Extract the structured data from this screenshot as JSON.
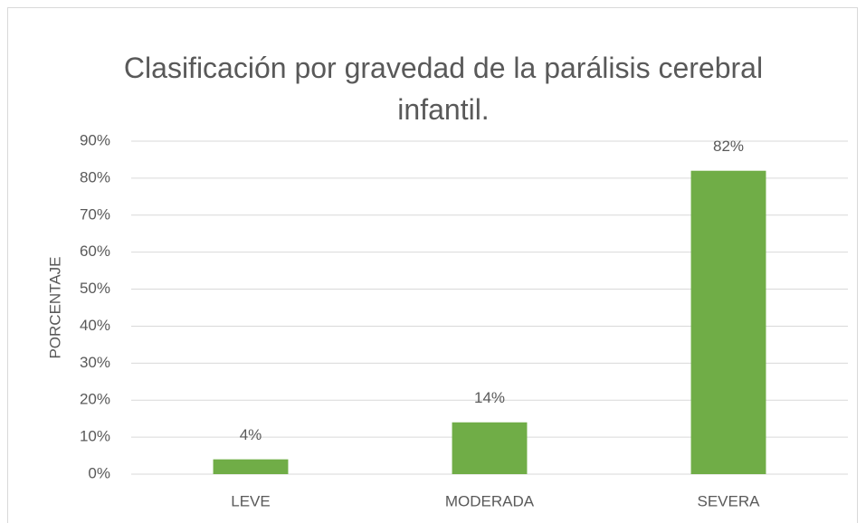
{
  "chart_data": {
    "type": "bar",
    "title": "Clasificación por gravedad de la parálisis cerebral infantil.",
    "ylabel": "PORCENTAJE",
    "categories": [
      "LEVE",
      "MODERADA",
      "SEVERA"
    ],
    "values": [
      4,
      14,
      82
    ],
    "value_labels": [
      "4%",
      "14%",
      "82%"
    ],
    "color": "#70ad47",
    "ylim": [
      0,
      90
    ],
    "yticks": [
      {
        "value": 0,
        "label": "0%"
      },
      {
        "value": 10,
        "label": "10%"
      },
      {
        "value": 20,
        "label": "20%"
      },
      {
        "value": 30,
        "label": "30%"
      },
      {
        "value": 40,
        "label": "40%"
      },
      {
        "value": 50,
        "label": "50%"
      },
      {
        "value": 60,
        "label": "60%"
      },
      {
        "value": 70,
        "label": "70%"
      },
      {
        "value": 80,
        "label": "80%"
      },
      {
        "value": 90,
        "label": "90%"
      }
    ],
    "grid": true
  }
}
